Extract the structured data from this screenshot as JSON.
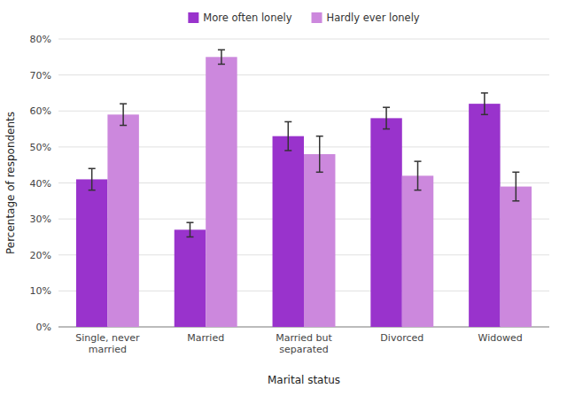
{
  "chart_data": {
    "type": "bar",
    "categories": [
      "Single, never\nmarried",
      "Married",
      "Married but\nseparated",
      "Divorced",
      "Widowed"
    ],
    "series": [
      {
        "name": "More often lonely",
        "color": "#9933CC",
        "values": [
          41,
          27,
          53,
          58,
          62
        ],
        "errors": [
          3,
          2,
          4,
          3,
          3
        ]
      },
      {
        "name": "Hardly ever lonely",
        "color": "#CC88DD",
        "values": [
          59,
          75,
          48,
          42,
          39
        ],
        "errors": [
          3,
          2,
          5,
          4,
          4
        ]
      }
    ],
    "xlabel": "Marital status",
    "ylabel": "Percentage of respondents",
    "ylim": [
      0,
      80
    ],
    "yticks": [
      {
        "value": 0,
        "label": "0%"
      },
      {
        "value": 10,
        "label": "10%"
      },
      {
        "value": 20,
        "label": "20%"
      },
      {
        "value": 30,
        "label": "30%"
      },
      {
        "value": 40,
        "label": "40%"
      },
      {
        "value": 50,
        "label": "50%"
      },
      {
        "value": 60,
        "label": "60%"
      },
      {
        "value": 70,
        "label": "70%"
      },
      {
        "value": 80,
        "label": "80%"
      }
    ],
    "grid": true,
    "legend": "top"
  }
}
